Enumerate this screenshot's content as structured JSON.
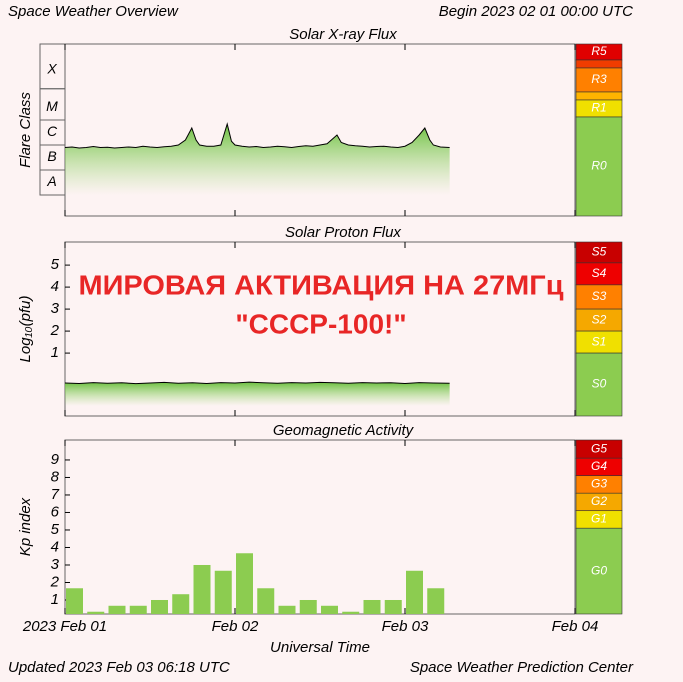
{
  "title": "Space Weather Overview",
  "begin": "Begin 2023 02 01 00:00 UTC",
  "updated": "Updated 2023 Feb 03 06:18 UTC",
  "credit": "Space Weather Prediction Center",
  "chart_data": [
    {
      "type": "area",
      "title": "Solar X-ray Flux",
      "ylabel": "Flare Class",
      "x": [
        0,
        1,
        2,
        3,
        4,
        5,
        6,
        7,
        8,
        9,
        10,
        11,
        12,
        13,
        14,
        15,
        16,
        17,
        17.9,
        18.5,
        19,
        20,
        21,
        22,
        22.9,
        23.5,
        24,
        25,
        26,
        27,
        28,
        29,
        30,
        31,
        32,
        33,
        34,
        35,
        36,
        37,
        38.4,
        39,
        40,
        41,
        42,
        43,
        44,
        45,
        46,
        47,
        48,
        49,
        50,
        50.8,
        51.5,
        52,
        53,
        54.3
      ],
      "values": [
        -6.1,
        -6.08,
        -6.12,
        -6.1,
        -6.06,
        -6.1,
        -6.09,
        -6.12,
        -6.1,
        -6.08,
        -6.1,
        -6.05,
        -6.08,
        -6.1,
        -6.07,
        -6.05,
        -6.0,
        -5.8,
        -5.32,
        -5.8,
        -6.0,
        -6.05,
        -6.05,
        -6.0,
        -5.16,
        -5.85,
        -6.0,
        -6.05,
        -6.08,
        -6.06,
        -6.1,
        -6.08,
        -6.05,
        -6.07,
        -6.1,
        -6.06,
        -6.03,
        -6.05,
        -6.0,
        -5.95,
        -5.6,
        -5.9,
        -6.0,
        -6.03,
        -6.05,
        -6.08,
        -6.06,
        -6.05,
        -6.08,
        -6.1,
        -6.05,
        -5.9,
        -5.6,
        -5.32,
        -5.8,
        -6.0,
        -6.08,
        -6.1
      ],
      "color": "#000000",
      "fill": "#7cc84a",
      "xlim": [
        0,
        72
      ],
      "ylim": [
        -8.84,
        -1.96
      ],
      "yticks": [
        {
          "value": -7.5,
          "label": "A"
        },
        {
          "value": -6.5,
          "label": "B"
        },
        {
          "value": -5.5,
          "label": "C"
        },
        {
          "value": -4.5,
          "label": "M"
        },
        {
          "value": -3,
          "label": "X"
        }
      ],
      "scale": [
        {
          "label": "R5",
          "color": "#e00000",
          "range": [
            -1.96,
            -2.6
          ]
        },
        {
          "label": null,
          "color": "#f03c00",
          "range": [
            -2.6,
            -2.92
          ]
        },
        {
          "label": "R3",
          "color": "#ff8000",
          "range": [
            -2.92,
            -3.88
          ]
        },
        {
          "label": null,
          "color": "#ffb400",
          "range": [
            -3.88,
            -4.2
          ]
        },
        {
          "label": "R1",
          "color": "#f0e000",
          "range": [
            -4.2,
            -4.88
          ]
        },
        {
          "label": "R0",
          "color": "#8ccc50",
          "range": [
            -4.88,
            -8.84
          ]
        }
      ]
    },
    {
      "type": "area",
      "title": "Solar Proton Flux",
      "ylabel": "Log₁₀(pfu)",
      "annotations": [
        "МИРОВАЯ АКТИВАЦИЯ НА 27МГц",
        "\"СССР-100!\""
      ],
      "x": [
        0,
        2,
        4,
        6,
        8,
        10,
        12,
        14,
        16,
        18,
        20,
        22,
        24,
        26,
        28,
        30,
        32,
        34,
        36,
        38,
        40,
        42,
        44,
        46,
        48,
        50,
        52,
        54.3
      ],
      "values": [
        -0.36,
        -0.38,
        -0.34,
        -0.37,
        -0.35,
        -0.39,
        -0.36,
        -0.33,
        -0.37,
        -0.35,
        -0.38,
        -0.34,
        -0.36,
        -0.32,
        -0.35,
        -0.37,
        -0.34,
        -0.36,
        -0.33,
        -0.35,
        -0.37,
        -0.34,
        -0.36,
        -0.35,
        -0.38,
        -0.34,
        -0.36,
        -0.37
      ],
      "color": "#000000",
      "fill": "#7cc84a",
      "xlim": [
        0,
        72
      ],
      "ylim": [
        -1.86,
        6.05
      ],
      "yticks": [
        1,
        2,
        3,
        4,
        5
      ],
      "scale": [
        {
          "label": "S5",
          "color": "#c80000",
          "range": [
            6.05,
            5.1
          ]
        },
        {
          "label": "S4",
          "color": "#ee0000",
          "range": [
            5.1,
            4.1
          ]
        },
        {
          "label": "S3",
          "color": "#ff8000",
          "range": [
            4.1,
            3
          ]
        },
        {
          "label": "S2",
          "color": "#f5a800",
          "range": [
            3,
            2
          ]
        },
        {
          "label": "S1",
          "color": "#f0e000",
          "range": [
            2,
            1
          ]
        },
        {
          "label": "S0",
          "color": "#8ccc50",
          "range": [
            1,
            -1.86
          ]
        }
      ]
    },
    {
      "type": "bar",
      "title": "Geomagnetic Activity",
      "ylabel": "Kp index",
      "xlabel": "Universal Time",
      "x": [
        0,
        3,
        6,
        9,
        12,
        15,
        18,
        21,
        24,
        27,
        30,
        33,
        36,
        39,
        42,
        45,
        48,
        51
      ],
      "values": [
        1.67,
        0.33,
        0.67,
        0.67,
        1,
        1.33,
        3,
        2.67,
        3.67,
        1.67,
        0.67,
        1,
        0.67,
        0.33,
        1,
        1,
        2.67,
        1.67
      ],
      "color": "#8ccc50",
      "xlim": [
        0,
        72
      ],
      "xticks": [
        {
          "value": 0,
          "label": "2023 Feb 01"
        },
        {
          "value": 24,
          "label": "Feb 02"
        },
        {
          "value": 48,
          "label": "Feb 03"
        },
        {
          "value": 72,
          "label": "Feb 04"
        }
      ],
      "ylim": [
        0.2,
        10.14
      ],
      "yticks": [
        1,
        2,
        3,
        4,
        5,
        6,
        7,
        8,
        9
      ],
      "scale": [
        {
          "label": "G5",
          "color": "#c80000",
          "range": [
            10.14,
            9.1
          ]
        },
        {
          "label": "G4",
          "color": "#ee0000",
          "range": [
            9.1,
            8.1
          ]
        },
        {
          "label": "G3",
          "color": "#ff8000",
          "range": [
            8.1,
            7.1
          ]
        },
        {
          "label": "G2",
          "color": "#f5a800",
          "range": [
            7.1,
            6.1
          ]
        },
        {
          "label": "G1",
          "color": "#f0e000",
          "range": [
            6.1,
            5.1
          ]
        },
        {
          "label": "G0",
          "color": "#8ccc50",
          "range": [
            5.1,
            0.2
          ]
        }
      ]
    }
  ]
}
